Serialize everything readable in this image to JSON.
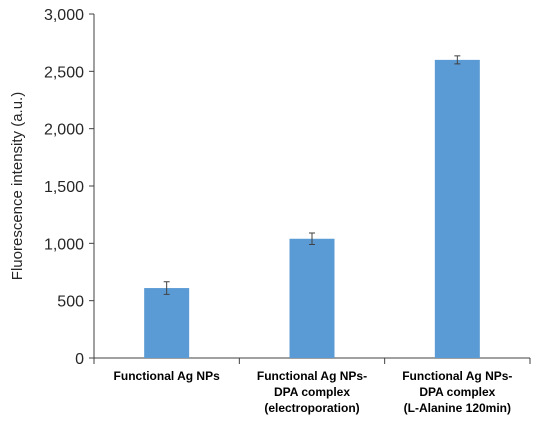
{
  "chart_data": {
    "type": "bar",
    "title": "",
    "xlabel": "",
    "ylabel": "Fluorescence intensity (a.u.)",
    "ylim": [
      0,
      3000
    ],
    "yticks": [
      0,
      500,
      1000,
      1500,
      2000,
      2500,
      3000
    ],
    "ytick_labels": [
      "0",
      "500",
      "1,000",
      "1,500",
      "2,000",
      "2,500",
      "3,000"
    ],
    "grid": false,
    "legend": "none",
    "bar_color": "#5b9bd5",
    "categories": [
      [
        "Functional Ag NPs"
      ],
      [
        "Functional Ag NPs-",
        "DPA complex",
        "(electroporation)"
      ],
      [
        "Functional Ag NPs-",
        "DPA complex",
        "(L-Alanine 120min)"
      ]
    ],
    "values": [
      610,
      1040,
      2600
    ],
    "errors": [
      55,
      50,
      35
    ]
  }
}
